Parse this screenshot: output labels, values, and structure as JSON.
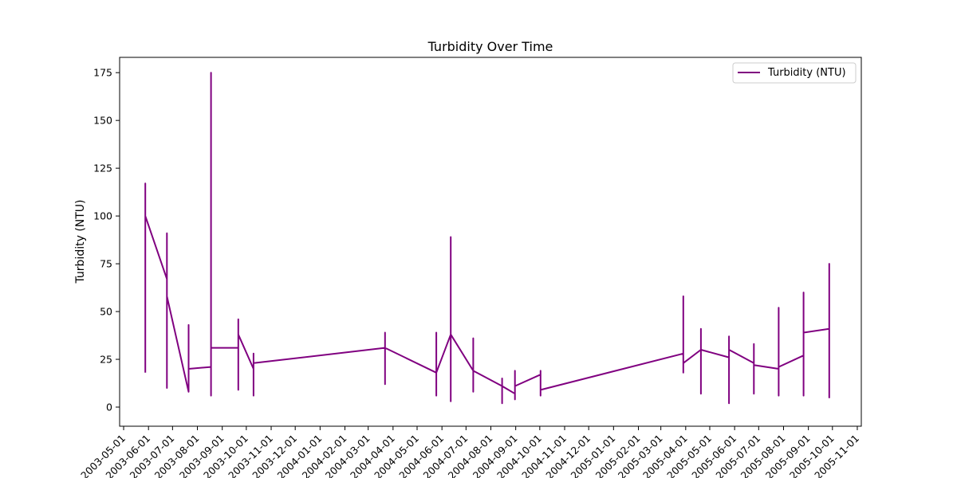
{
  "chart_data": {
    "type": "line",
    "title": "Turbidity Over Time",
    "xlabel": "",
    "ylabel": "Turbidity (NTU)",
    "ylim": [
      -10,
      183
    ],
    "xlim": [
      "2003-04-26",
      "2005-11-06"
    ],
    "yticks": [
      0,
      25,
      50,
      75,
      100,
      125,
      150,
      175
    ],
    "xticks": [
      "2003-05-01",
      "2003-06-01",
      "2003-07-01",
      "2003-08-01",
      "2003-09-01",
      "2003-10-01",
      "2003-11-01",
      "2003-12-01",
      "2004-01-01",
      "2004-02-01",
      "2004-03-01",
      "2004-04-01",
      "2004-05-01",
      "2004-06-01",
      "2004-07-01",
      "2004-08-01",
      "2004-09-01",
      "2004-10-01",
      "2004-11-01",
      "2004-12-01",
      "2005-01-01",
      "2005-02-01",
      "2005-03-01",
      "2005-04-01",
      "2005-05-01",
      "2005-06-01",
      "2005-07-01",
      "2005-08-01",
      "2005-09-01",
      "2005-10-01",
      "2005-11-01"
    ],
    "grid": false,
    "legend_position": "top-right",
    "color": "#800080",
    "series": [
      {
        "name": "Turbidity (NTU)",
        "points": [
          [
            "2003-05-28",
            18
          ],
          [
            "2003-05-28",
            117
          ],
          [
            "2003-05-28",
            30
          ],
          [
            "2003-05-28",
            100
          ],
          [
            "2003-06-24",
            67
          ],
          [
            "2003-06-24",
            10
          ],
          [
            "2003-06-24",
            91
          ],
          [
            "2003-06-24",
            58
          ],
          [
            "2003-07-21",
            8
          ],
          [
            "2003-07-21",
            43
          ],
          [
            "2003-07-21",
            20
          ],
          [
            "2003-08-18",
            21
          ],
          [
            "2003-08-18",
            6
          ],
          [
            "2003-08-18",
            175
          ],
          [
            "2003-08-18",
            31
          ],
          [
            "2003-09-21",
            31
          ],
          [
            "2003-09-21",
            9
          ],
          [
            "2003-09-21",
            46
          ],
          [
            "2003-09-21",
            21
          ],
          [
            "2003-09-21",
            38
          ],
          [
            "2003-10-10",
            20
          ],
          [
            "2003-10-10",
            6
          ],
          [
            "2003-10-10",
            28
          ],
          [
            "2003-10-10",
            23
          ],
          [
            "2004-03-22",
            31
          ],
          [
            "2004-03-22",
            12
          ],
          [
            "2004-03-22",
            39
          ],
          [
            "2004-03-22",
            31
          ],
          [
            "2004-05-25",
            18
          ],
          [
            "2004-05-25",
            6
          ],
          [
            "2004-05-25",
            39
          ],
          [
            "2004-05-25",
            18
          ],
          [
            "2004-06-12",
            38
          ],
          [
            "2004-06-12",
            3
          ],
          [
            "2004-06-12",
            89
          ],
          [
            "2004-06-12",
            12
          ],
          [
            "2004-06-12",
            58
          ],
          [
            "2004-06-12",
            38
          ],
          [
            "2004-07-10",
            19
          ],
          [
            "2004-07-10",
            8
          ],
          [
            "2004-07-10",
            36
          ],
          [
            "2004-07-10",
            19
          ],
          [
            "2004-08-15",
            11
          ],
          [
            "2004-08-15",
            2
          ],
          [
            "2004-08-15",
            15
          ],
          [
            "2004-08-15",
            11
          ],
          [
            "2004-08-31",
            7
          ],
          [
            "2004-08-31",
            4
          ],
          [
            "2004-08-31",
            19
          ],
          [
            "2004-08-31",
            11
          ],
          [
            "2004-10-02",
            17
          ],
          [
            "2004-10-02",
            6
          ],
          [
            "2004-10-02",
            19
          ],
          [
            "2004-10-02",
            9
          ],
          [
            "2005-03-29",
            28
          ],
          [
            "2005-03-29",
            18
          ],
          [
            "2005-03-29",
            58
          ],
          [
            "2005-03-29",
            23
          ],
          [
            "2005-04-20",
            30
          ],
          [
            "2005-04-20",
            7
          ],
          [
            "2005-04-20",
            41
          ],
          [
            "2005-04-20",
            30
          ],
          [
            "2005-05-25",
            26
          ],
          [
            "2005-05-25",
            2
          ],
          [
            "2005-05-25",
            37
          ],
          [
            "2005-05-25",
            30
          ],
          [
            "2005-06-25",
            23
          ],
          [
            "2005-06-25",
            7
          ],
          [
            "2005-06-25",
            33
          ],
          [
            "2005-06-25",
            22
          ],
          [
            "2005-07-26",
            20
          ],
          [
            "2005-07-26",
            6
          ],
          [
            "2005-07-26",
            52
          ],
          [
            "2005-07-26",
            21
          ],
          [
            "2005-08-26",
            27
          ],
          [
            "2005-08-26",
            6
          ],
          [
            "2005-08-26",
            60
          ],
          [
            "2005-08-26",
            39
          ],
          [
            "2005-09-27",
            41
          ],
          [
            "2005-09-27",
            5
          ],
          [
            "2005-09-27",
            75
          ],
          [
            "2005-09-27",
            20
          ],
          [
            "2005-09-27",
            70
          ],
          [
            "2005-09-27",
            41
          ]
        ]
      }
    ]
  }
}
